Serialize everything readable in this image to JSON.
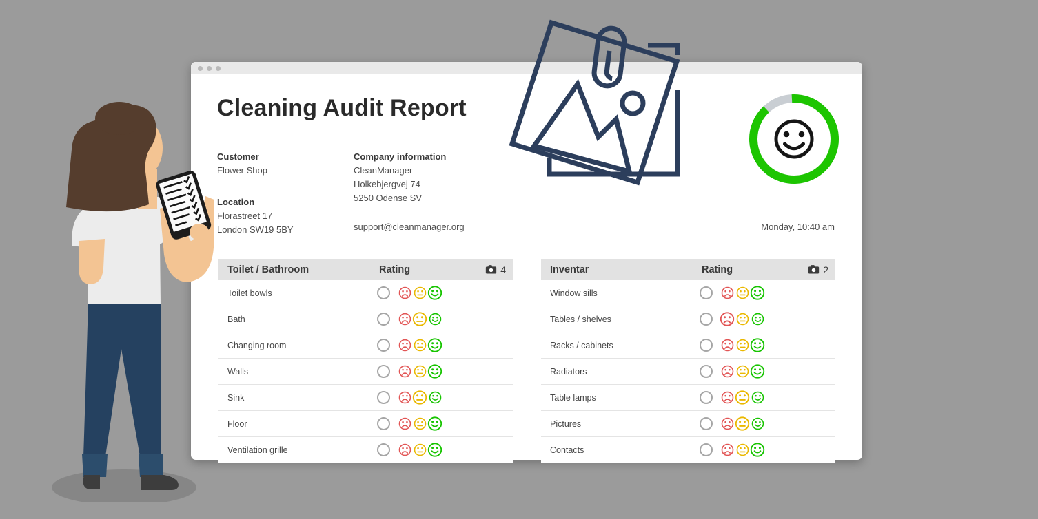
{
  "window": {
    "type": "browser-mockup",
    "control_dots": 3
  },
  "header": {
    "title": "Cleaning Audit Report",
    "datetime": "Monday, 10:40 am"
  },
  "customer": {
    "label": "Customer",
    "name": "Flower Shop",
    "location_label": "Location",
    "address1": "Florastreet 17",
    "address2": "London SW19 5BY"
  },
  "company": {
    "label": "Company information",
    "name": "CleanManager",
    "address1": "Holkebjergvej 74",
    "address2": "5250 Odense SV",
    "email": "support@cleanmanager.org"
  },
  "gauge": {
    "overall_result": "happy",
    "ring_fill_percent": 89
  },
  "tables": [
    {
      "title": "Toilet / Bathroom",
      "rating_label": "Rating",
      "photo_count": "4",
      "rows": [
        {
          "label": "Toilet bowls",
          "rating": "happy"
        },
        {
          "label": "Bath",
          "rating": "neutral"
        },
        {
          "label": "Changing room",
          "rating": "happy"
        },
        {
          "label": "Walls",
          "rating": "happy"
        },
        {
          "label": "Sink",
          "rating": "neutral"
        },
        {
          "label": "Floor",
          "rating": "happy"
        },
        {
          "label": "Ventilation grille",
          "rating": "happy"
        }
      ]
    },
    {
      "title": "Inventar",
      "rating_label": "Rating",
      "photo_count": "2",
      "rows": [
        {
          "label": "Window sills",
          "rating": "happy"
        },
        {
          "label": "Tables / shelves",
          "rating": "sad"
        },
        {
          "label": "Racks / cabinets",
          "rating": "happy"
        },
        {
          "label": "Radiators",
          "rating": "happy"
        },
        {
          "label": "Table lamps",
          "rating": "neutral"
        },
        {
          "label": "Pictures",
          "rating": "neutral"
        },
        {
          "label": "Contacts",
          "rating": "happy"
        }
      ]
    }
  ],
  "icons": {
    "camera": "camera-icon",
    "radio": "radio-circle-icon",
    "sad": "sad-smiley-icon",
    "neutral": "neutral-smiley-icon",
    "happy": "happy-smiley-icon",
    "gauge_face": "smiley-face-icon",
    "window_dots": "window-control-dot"
  },
  "colors": {
    "sad": "#e25555",
    "neutral": "#eab800",
    "happy": "#17c400",
    "gauge_green": "#1dc501",
    "gauge_gray": "#c9ced3",
    "illustration_navy": "#2c3e5c",
    "background": "#9b9b9b",
    "table_header_bg": "#e2e2e2"
  }
}
